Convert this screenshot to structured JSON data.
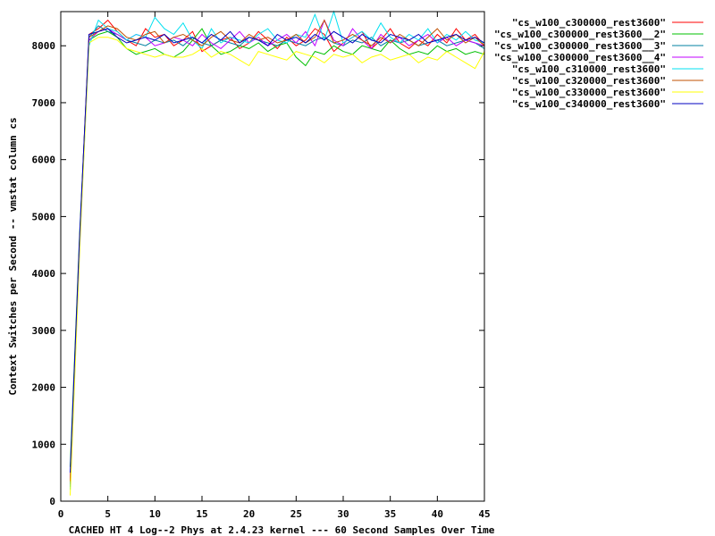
{
  "chart_data": {
    "type": "line",
    "xlabel": "CACHED HT 4 Log--2 Phys at 2.4.23 kernel --- 60 Second Samples Over Time",
    "ylabel": "Context Switches per Second -- vmstat column cs",
    "xlim": [
      0,
      45
    ],
    "ylim": [
      0,
      8600
    ],
    "xticks": [
      0,
      5,
      10,
      15,
      20,
      25,
      30,
      35,
      40,
      45
    ],
    "yticks": [
      0,
      1000,
      2000,
      3000,
      4000,
      5000,
      6000,
      7000,
      8000
    ],
    "legend_position": "outside-top-right",
    "grid": false,
    "series": [
      {
        "name": "\"cs_w100_c300000_rest3600\"",
        "color": "#ff0000",
        "x": [
          1,
          2,
          3,
          4,
          5,
          6,
          7,
          8,
          9,
          10,
          11,
          12,
          13,
          14,
          15,
          16,
          17,
          18,
          19,
          20,
          21,
          22,
          23,
          24,
          25,
          26,
          27,
          28,
          29,
          30,
          31,
          32,
          33,
          34,
          35,
          36,
          37,
          38,
          39,
          40,
          41,
          42,
          43,
          44,
          45
        ],
        "y": [
          300,
          4600,
          8200,
          8300,
          8450,
          8250,
          8100,
          8000,
          8300,
          8150,
          8200,
          8000,
          8100,
          8250,
          7900,
          8000,
          8100,
          8150,
          7950,
          8050,
          8250,
          8100,
          7950,
          8150,
          8000,
          8100,
          8300,
          8200,
          7900,
          8050,
          8150,
          8250,
          7950,
          8100,
          8300,
          8050,
          7950,
          8100,
          8000,
          8200,
          8050,
          8300,
          8100,
          8200,
          8000
        ]
      },
      {
        "name": "\"cs_w100_c300000_rest3600__2\"",
        "color": "#00c000",
        "x": [
          1,
          2,
          3,
          4,
          5,
          6,
          7,
          8,
          9,
          10,
          11,
          12,
          13,
          14,
          15,
          16,
          17,
          18,
          19,
          20,
          21,
          22,
          23,
          24,
          25,
          26,
          27,
          28,
          29,
          30,
          31,
          32,
          33,
          34,
          35,
          36,
          37,
          38,
          39,
          40,
          41,
          42,
          43,
          44,
          45
        ],
        "y": [
          600,
          4700,
          8100,
          8200,
          8250,
          8150,
          7950,
          7850,
          7900,
          7950,
          7850,
          7800,
          7900,
          8100,
          8300,
          8000,
          7850,
          7900,
          8000,
          7950,
          8050,
          7900,
          8000,
          8050,
          7800,
          7650,
          7900,
          7850,
          8000,
          7900,
          7850,
          8000,
          7950,
          7900,
          8100,
          7950,
          7850,
          7900,
          7850,
          8000,
          7900,
          7950,
          7850,
          7900,
          7850
        ]
      },
      {
        "name": "\"cs_w100_c300000_rest3600__3\"",
        "color": "#0080a0",
        "x": [
          1,
          2,
          3,
          4,
          5,
          6,
          7,
          8,
          9,
          10,
          11,
          12,
          13,
          14,
          15,
          16,
          17,
          18,
          19,
          20,
          21,
          22,
          23,
          24,
          25,
          26,
          27,
          28,
          29,
          30,
          31,
          32,
          33,
          34,
          35,
          36,
          37,
          38,
          39,
          40,
          41,
          42,
          43,
          44,
          45
        ],
        "y": [
          250,
          4500,
          8150,
          8350,
          8250,
          8200,
          8100,
          8050,
          8000,
          8100,
          8050,
          8100,
          8000,
          8150,
          8050,
          8000,
          8100,
          8050,
          8000,
          8150,
          8100,
          8050,
          8000,
          8100,
          8050,
          8000,
          8100,
          8150,
          8050,
          8000,
          8100,
          8050,
          8150,
          8000,
          8100,
          8050,
          8100,
          8000,
          8050,
          8100,
          8000,
          8050,
          8100,
          8050,
          7950
        ]
      },
      {
        "name": "\"cs_w100_c300000_rest3600__4\"",
        "color": "#c000ff",
        "x": [
          1,
          2,
          3,
          4,
          5,
          6,
          7,
          8,
          9,
          10,
          11,
          12,
          13,
          14,
          15,
          16,
          17,
          18,
          19,
          20,
          21,
          22,
          23,
          24,
          25,
          26,
          27,
          28,
          29,
          30,
          31,
          32,
          33,
          34,
          35,
          36,
          37,
          38,
          39,
          40,
          41,
          42,
          43,
          44,
          45
        ],
        "y": [
          400,
          4550,
          8100,
          8250,
          8300,
          8200,
          8100,
          8200,
          8150,
          8000,
          8050,
          8150,
          8100,
          8000,
          8200,
          8050,
          7950,
          8100,
          8250,
          8050,
          8150,
          8000,
          8100,
          8200,
          8050,
          8250,
          8000,
          8450,
          8100,
          8000,
          8300,
          8100,
          7950,
          8200,
          8050,
          8150,
          8000,
          8100,
          8200,
          8050,
          8150,
          8000,
          8100,
          8050,
          8000
        ]
      },
      {
        "name": "\"cs_w100_c310000_rest3600\"",
        "color": "#00e0f0",
        "x": [
          1,
          2,
          3,
          4,
          5,
          6,
          7,
          8,
          9,
          10,
          11,
          12,
          13,
          14,
          15,
          16,
          17,
          18,
          19,
          20,
          21,
          22,
          23,
          24,
          25,
          26,
          27,
          28,
          29,
          30,
          31,
          32,
          33,
          34,
          35,
          36,
          37,
          38,
          39,
          40,
          41,
          42,
          43,
          44,
          45
        ],
        "y": [
          200,
          4500,
          8000,
          8450,
          8300,
          8250,
          8100,
          8200,
          8150,
          8500,
          8300,
          8200,
          8400,
          8100,
          7950,
          8300,
          8050,
          8150,
          8100,
          8050,
          8200,
          8300,
          8100,
          8050,
          8200,
          8150,
          8550,
          8100,
          8600,
          8050,
          8150,
          8250,
          8100,
          8400,
          8150,
          8050,
          8200,
          8100,
          8300,
          8050,
          8200,
          8100,
          8250,
          8100,
          8050
        ]
      },
      {
        "name": "\"cs_w100_c320000_rest3600\"",
        "color": "#c05000",
        "x": [
          1,
          2,
          3,
          4,
          5,
          6,
          7,
          8,
          9,
          10,
          11,
          12,
          13,
          14,
          15,
          16,
          17,
          18,
          19,
          20,
          21,
          22,
          23,
          24,
          25,
          26,
          27,
          28,
          29,
          30,
          31,
          32,
          33,
          34,
          35,
          36,
          37,
          38,
          39,
          40,
          41,
          42,
          43,
          44,
          45
        ],
        "y": [
          350,
          4600,
          8150,
          8250,
          8350,
          8300,
          8150,
          8100,
          8200,
          8250,
          8050,
          8150,
          8200,
          8100,
          8000,
          8150,
          8250,
          8100,
          8050,
          8200,
          8100,
          8150,
          8050,
          8100,
          8200,
          8050,
          8150,
          8450,
          8050,
          8100,
          8200,
          8100,
          8000,
          8150,
          8050,
          8200,
          8100,
          8000,
          8150,
          8300,
          8100,
          8200,
          8050,
          8150,
          8000
        ]
      },
      {
        "name": "\"cs_w100_c330000_rest3600\"",
        "color": "#ffff00",
        "x": [
          1,
          2,
          3,
          4,
          5,
          6,
          7,
          8,
          9,
          10,
          11,
          12,
          13,
          14,
          15,
          16,
          17,
          18,
          19,
          20,
          21,
          22,
          23,
          24,
          25,
          26,
          27,
          28,
          29,
          30,
          31,
          32,
          33,
          34,
          35,
          36,
          37,
          38,
          39,
          40,
          41,
          42,
          43,
          44,
          45
        ],
        "y": [
          100,
          4400,
          8050,
          8150,
          8150,
          8100,
          7950,
          7900,
          7850,
          7800,
          7850,
          7800,
          7800,
          7850,
          7950,
          7800,
          7900,
          7850,
          7750,
          7650,
          7900,
          7850,
          7800,
          7750,
          7900,
          7850,
          7800,
          7700,
          7850,
          7800,
          7850,
          7700,
          7800,
          7850,
          7750,
          7800,
          7850,
          7700,
          7800,
          7750,
          7900,
          7800,
          7700,
          7600,
          7900
        ]
      },
      {
        "name": "\"cs_w100_c340000_rest3600\"",
        "color": "#0000c0",
        "x": [
          1,
          2,
          3,
          4,
          5,
          6,
          7,
          8,
          9,
          10,
          11,
          12,
          13,
          14,
          15,
          16,
          17,
          18,
          19,
          20,
          21,
          22,
          23,
          24,
          25,
          26,
          27,
          28,
          29,
          30,
          31,
          32,
          33,
          34,
          35,
          36,
          37,
          38,
          39,
          40,
          41,
          42,
          43,
          44,
          45
        ],
        "y": [
          500,
          4650,
          8200,
          8250,
          8300,
          8150,
          8050,
          8100,
          8150,
          8100,
          8200,
          8050,
          8100,
          8150,
          8050,
          8200,
          8100,
          8250,
          8050,
          8150,
          8100,
          8000,
          8200,
          8100,
          8150,
          8050,
          8200,
          8100,
          8250,
          8150,
          8050,
          8200,
          8100,
          8050,
          8200,
          8150,
          8100,
          8200,
          8050,
          8100,
          8150,
          8200,
          8100,
          8150,
          8050
        ]
      }
    ]
  }
}
